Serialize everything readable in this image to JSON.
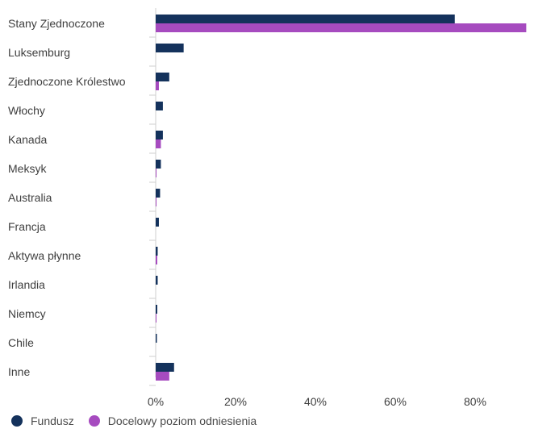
{
  "chart_data": {
    "type": "bar",
    "orientation": "horizontal",
    "categories": [
      "Stany Zjednoczone",
      "Luksemburg",
      "Zjednoczone Królestwo",
      "Włochy",
      "Kanada",
      "Meksyk",
      "Australia",
      "Francja",
      "Aktywa płynne",
      "Irlandia",
      "Niemcy",
      "Chile",
      "Inne"
    ],
    "series": [
      {
        "name": "Fundusz",
        "color": "#14325c",
        "values": [
          74.9,
          7.0,
          3.4,
          1.8,
          1.8,
          1.3,
          1.1,
          0.8,
          0.5,
          0.5,
          0.4,
          0.3,
          4.6
        ]
      },
      {
        "name": "Docelowy poziom odniesienia",
        "color": "#a64bbf",
        "values": [
          92.8,
          0.0,
          0.8,
          0.0,
          1.3,
          0.2,
          0.2,
          0.0,
          0.4,
          0.0,
          0.2,
          0.0,
          3.4
        ]
      }
    ],
    "xlim": [
      0,
      100
    ],
    "xticks": [
      0,
      20,
      40,
      60,
      80
    ],
    "xtick_labels": [
      "0%",
      "20%",
      "40%",
      "60%",
      "80%"
    ],
    "grid": false,
    "legend_position": "bottom-left"
  }
}
